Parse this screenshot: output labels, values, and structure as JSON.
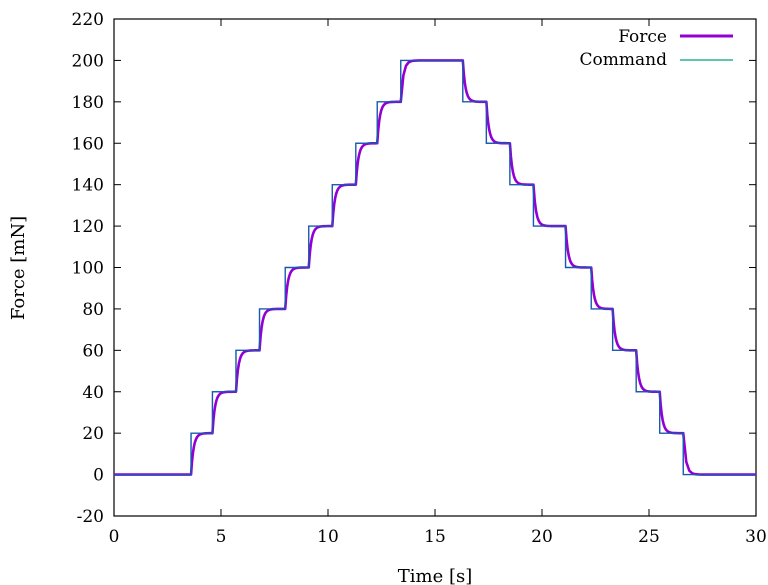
{
  "chart_data": {
    "type": "line",
    "title": "",
    "xlabel": "Time [s]",
    "ylabel": "Force [mN]",
    "xlim": [
      0,
      30
    ],
    "ylim": [
      -20,
      220
    ],
    "x_ticks": [
      0,
      5,
      10,
      15,
      20,
      25,
      30
    ],
    "y_ticks": [
      -20,
      0,
      20,
      40,
      60,
      80,
      100,
      120,
      140,
      160,
      180,
      200,
      220
    ],
    "x_tick_labels": [
      "0",
      "5",
      "10",
      "15",
      "20",
      "25",
      "30"
    ],
    "y_tick_labels": [
      "-20",
      "0",
      "20",
      "40",
      "60",
      "80",
      "100",
      "120",
      "140",
      "160",
      "180",
      "200",
      "220"
    ],
    "grid": false,
    "legend_position": "top-right",
    "series": [
      {
        "name": "Force",
        "color": "#9400d3",
        "style": "lagged-step",
        "step_times": [
          0,
          3.6,
          4.6,
          5.7,
          6.8,
          8.0,
          9.1,
          10.2,
          11.3,
          12.3,
          13.4,
          16.3,
          17.4,
          18.5,
          19.6,
          21.1,
          22.3,
          23.3,
          24.4,
          25.5,
          26.6,
          30
        ],
        "step_values": [
          0,
          20,
          40,
          60,
          80,
          100,
          120,
          140,
          160,
          180,
          200,
          180,
          160,
          140,
          120,
          100,
          80,
          60,
          40,
          20,
          0,
          0
        ]
      },
      {
        "name": "Command",
        "color": "#00a080",
        "style": "step",
        "step_times": [
          0,
          3.6,
          4.6,
          5.7,
          6.8,
          8.0,
          9.1,
          10.2,
          11.3,
          12.3,
          13.4,
          16.3,
          17.4,
          18.5,
          19.6,
          21.1,
          22.3,
          23.3,
          24.4,
          25.5,
          26.6,
          30
        ],
        "step_values": [
          0,
          20,
          40,
          60,
          80,
          100,
          120,
          140,
          160,
          180,
          200,
          180,
          160,
          140,
          120,
          100,
          80,
          60,
          40,
          20,
          0,
          0
        ]
      }
    ],
    "overlay_series": {
      "color": "#2040c0",
      "style": "step"
    }
  }
}
